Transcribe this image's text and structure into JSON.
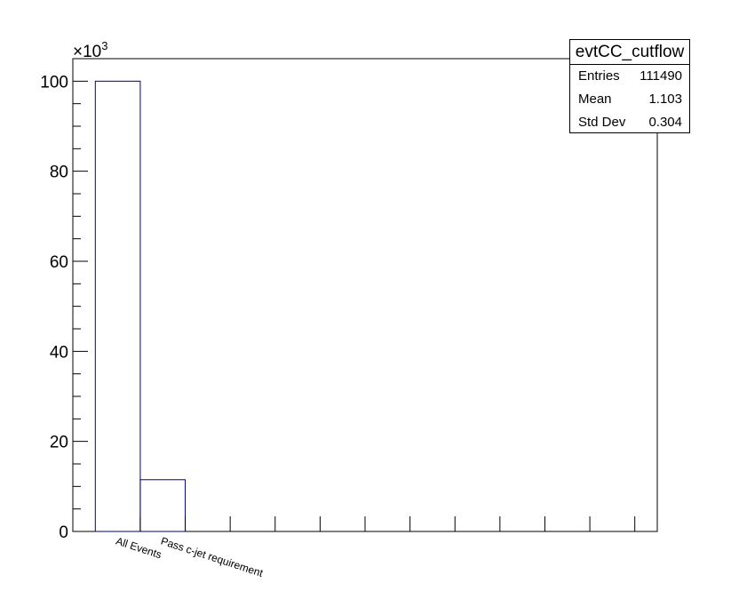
{
  "chart_data": {
    "type": "bar",
    "histogram": true,
    "title": "",
    "xlabel": "",
    "ylabel": "",
    "categories": [
      "All Events",
      "Pass c-jet requirement"
    ],
    "values": [
      100000,
      11490
    ],
    "n_bins": 12,
    "ylim": [
      0,
      105000
    ],
    "y_ticks": [
      0,
      20,
      40,
      60,
      80,
      100
    ],
    "y_multiplier_label": "×10",
    "y_multiplier_exponent": "3",
    "grid": false,
    "line_color": "#000080"
  },
  "stats": {
    "title": "evtCC_cutflow",
    "rows": [
      {
        "label": "Entries",
        "value": "111490"
      },
      {
        "label": "Mean",
        "value": "1.103"
      },
      {
        "label": "Std Dev",
        "value": "0.304"
      }
    ]
  }
}
